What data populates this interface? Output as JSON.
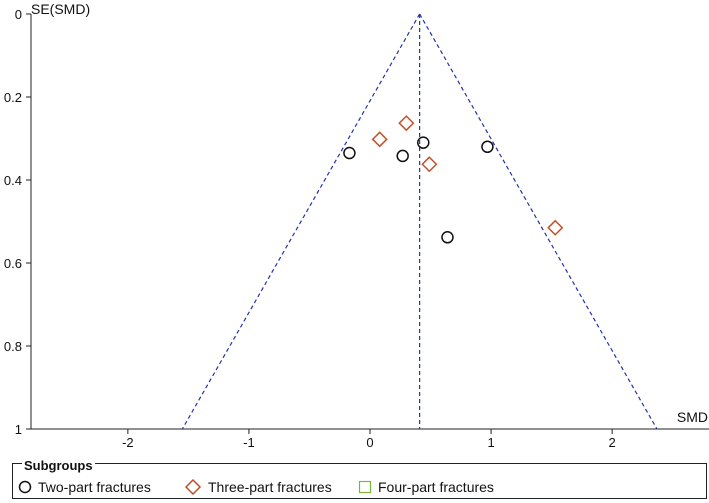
{
  "chart_data": {
    "type": "scatter",
    "subtype": "funnel plot",
    "xlabel": "SMD",
    "ylabel": "SE(SMD)",
    "xlim": [
      -2.8,
      2.8
    ],
    "ylim": [
      0,
      1
    ],
    "y_inverted": true,
    "x_ticks": [
      -2,
      -1,
      0,
      1,
      2
    ],
    "x_tick_labels": [
      "-2",
      "-1",
      "0",
      "1",
      "2"
    ],
    "y_ticks": [
      0,
      0.2,
      0.4,
      0.6,
      0.8,
      1
    ],
    "y_tick_labels": [
      "0",
      "0.2",
      "0.4",
      "0.6",
      "0.8",
      "1"
    ],
    "pooled_estimate": 0.41,
    "funnel_line_color": "#2233aa",
    "series": [
      {
        "name": "Two-part fractures",
        "marker": "circle",
        "color": "#111111",
        "points": [
          {
            "x": -0.17,
            "y": 0.335
          },
          {
            "x": 0.27,
            "y": 0.342
          },
          {
            "x": 0.44,
            "y": 0.31
          },
          {
            "x": 0.97,
            "y": 0.32
          },
          {
            "x": 0.64,
            "y": 0.538
          }
        ]
      },
      {
        "name": "Three-part fractures",
        "marker": "diamond",
        "color": "#c0502a",
        "points": [
          {
            "x": 0.08,
            "y": 0.302
          },
          {
            "x": 0.3,
            "y": 0.263
          },
          {
            "x": 0.49,
            "y": 0.362
          },
          {
            "x": 1.53,
            "y": 0.515
          }
        ]
      },
      {
        "name": "Four-part fractures",
        "marker": "square",
        "color": "#7ab83c",
        "points": []
      }
    ],
    "legend": {
      "title": "Subgroups",
      "placement": "bottom"
    }
  }
}
